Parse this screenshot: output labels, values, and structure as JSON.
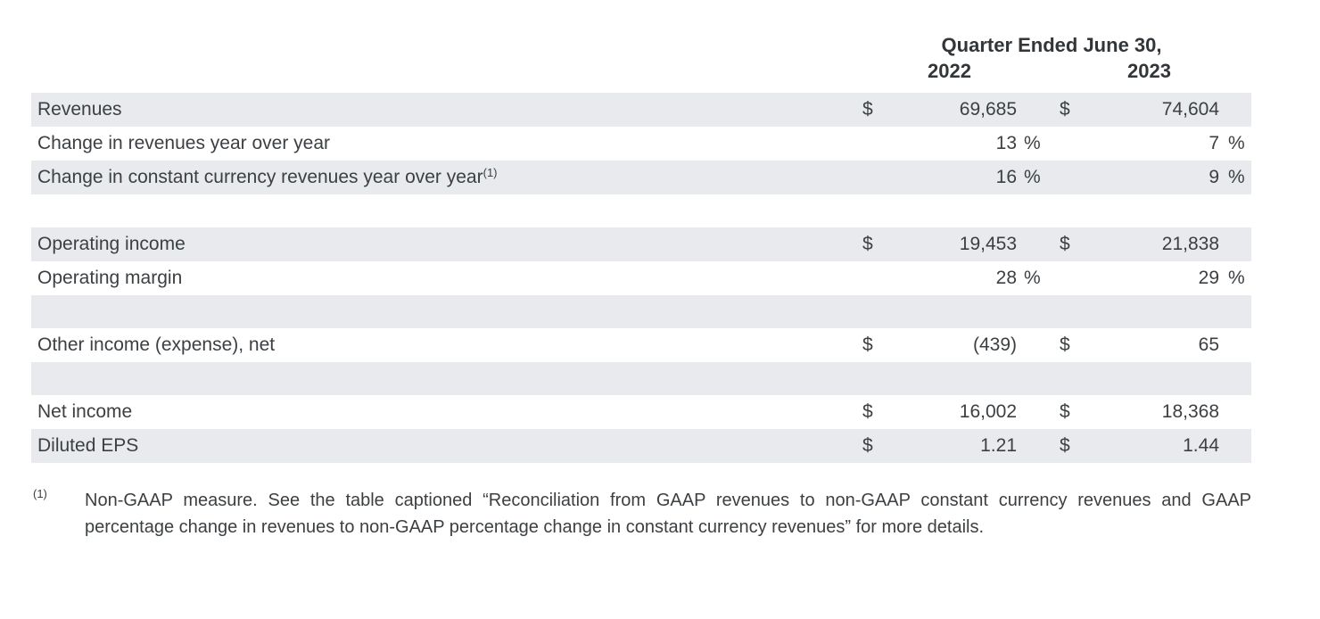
{
  "colors": {
    "stripe": "#e8eaed",
    "text": "#3c4043",
    "background": "#ffffff"
  },
  "table": {
    "header": {
      "title": "Quarter Ended June 30,",
      "col_2022": "2022",
      "col_2023": "2023"
    },
    "rows": [
      {
        "label": "Revenues",
        "cur1": "$",
        "val1": "69,685",
        "cur2": "$",
        "val2": "74,604"
      },
      {
        "label": "Change in revenues year over year",
        "val1": "13",
        "pct1": "%",
        "val2": "7",
        "pct2": "%"
      },
      {
        "label": "Change in constant currency revenues year over year",
        "sup": "(1)",
        "val1": "16",
        "pct1": "%",
        "val2": "9",
        "pct2": "%"
      },
      {
        "spacer": true
      },
      {
        "label": "Operating income",
        "cur1": "$",
        "val1": "19,453",
        "cur2": "$",
        "val2": "21,838"
      },
      {
        "label": "Operating margin",
        "val1": "28",
        "pct1": "%",
        "val2": "29",
        "pct2": "%"
      },
      {
        "spacer": true
      },
      {
        "label": "Other income (expense), net",
        "cur1": "$",
        "val1": "(439)",
        "cur2": "$",
        "val2": "65"
      },
      {
        "spacer": true
      },
      {
        "label": "Net income",
        "cur1": "$",
        "val1": "16,002",
        "cur2": "$",
        "val2": "18,368"
      },
      {
        "label": "Diluted EPS",
        "cur1": "$",
        "val1": "1.21",
        "cur2": "$",
        "val2": "1.44"
      }
    ],
    "footnote": {
      "marker": "(1)",
      "text": "Non-GAAP measure. See the table captioned “Reconciliation from GAAP revenues to non-GAAP constant currency revenues and GAAP percentage change in revenues to non-GAAP percentage change in constant currency revenues” for more details."
    }
  }
}
